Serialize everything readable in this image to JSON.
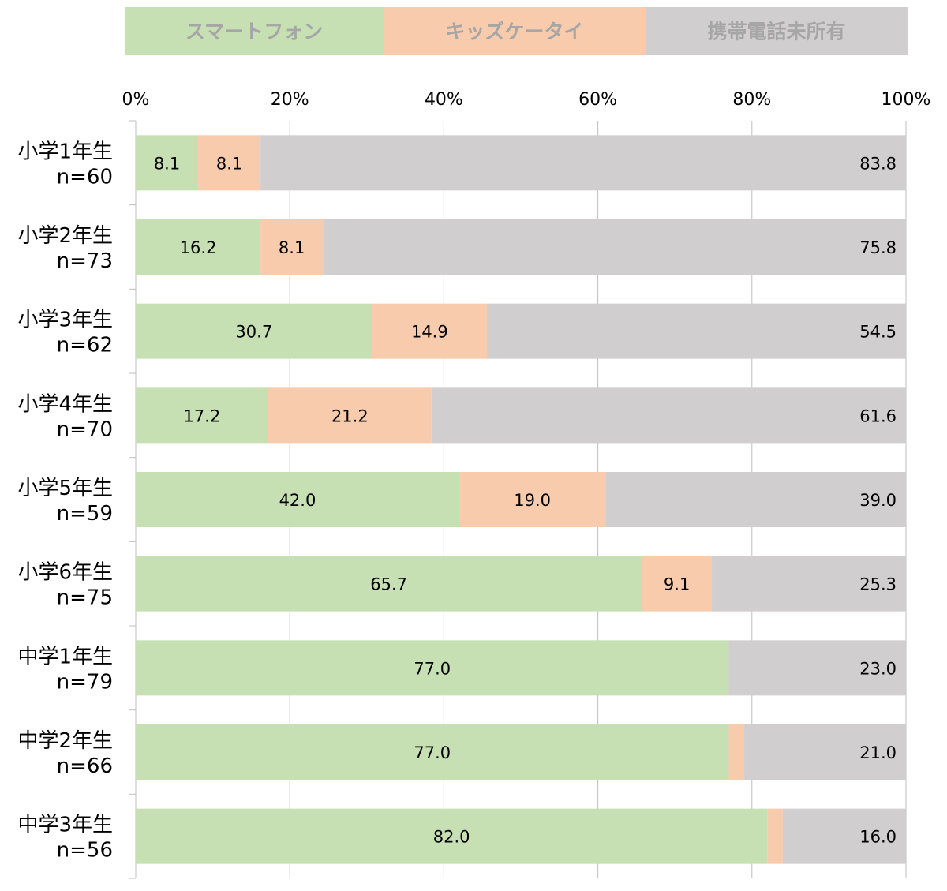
{
  "chart_data": {
    "type": "bar",
    "orientation": "horizontal",
    "stacked": true,
    "legend_position": "top",
    "grid": true,
    "xlim": [
      0,
      100
    ],
    "x_ticks": [
      "0%",
      "20%",
      "40%",
      "60%",
      "80%",
      "100%"
    ],
    "categories": [
      [
        "小学1年生",
        "n=60"
      ],
      [
        "小学2年生",
        "n=73"
      ],
      [
        "小学3年生",
        "n=62"
      ],
      [
        "小学4年生",
        "n=70"
      ],
      [
        "小学5年生",
        "n=59"
      ],
      [
        "小学6年生",
        "n=75"
      ],
      [
        "中学1年生",
        "n=79"
      ],
      [
        "中学2年生",
        "n=66"
      ],
      [
        "中学3年生",
        "n=56"
      ]
    ],
    "series": [
      {
        "name": "スマートフォン",
        "color": "#c6e0b4",
        "values": [
          8.1,
          16.2,
          30.7,
          17.2,
          42.0,
          65.7,
          77.0,
          77.0,
          82.0
        ],
        "labels": [
          "8.1",
          "16.2",
          "30.7",
          "17.2",
          "42.0",
          "65.7",
          "77.0",
          "77.0",
          "82.0"
        ]
      },
      {
        "name": "キッズケータイ",
        "color": "#f8cbad",
        "values": [
          8.1,
          8.1,
          14.9,
          21.2,
          19.0,
          9.1,
          0,
          2.0,
          2.0
        ],
        "labels": [
          "8.1",
          "8.1",
          "14.9",
          "21.2",
          "19.0",
          "9.1",
          "",
          "",
          ""
        ]
      },
      {
        "name": "携帯電話未所有",
        "color": "#d0cece",
        "values": [
          83.8,
          75.8,
          54.5,
          61.6,
          39.0,
          25.3,
          23.0,
          21.0,
          16.0
        ],
        "labels": [
          "83.8",
          "75.8",
          "54.5",
          "61.6",
          "39.0",
          "25.3",
          "23.0",
          "21.0",
          "16.0"
        ]
      }
    ]
  },
  "colors": {
    "legend_text": "#a6a6a6",
    "grid": "#bfbfbf",
    "axis_text": "#000000"
  }
}
